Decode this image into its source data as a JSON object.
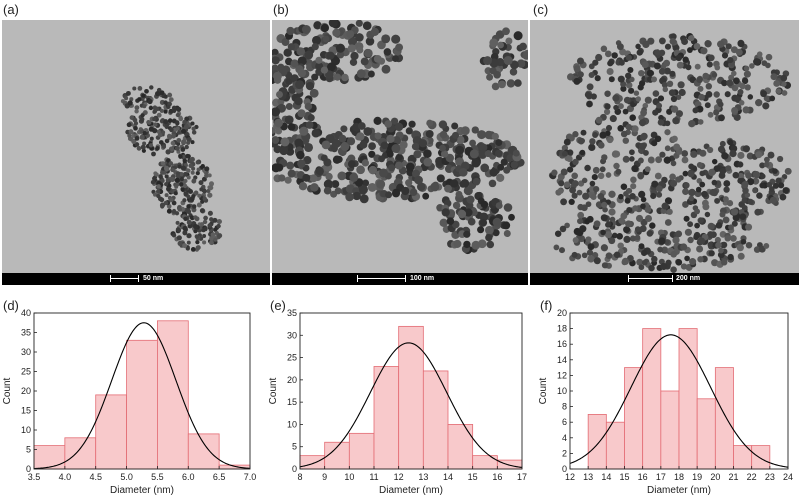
{
  "panels": {
    "a": {
      "label": "(a)",
      "scale": "50 nm"
    },
    "b": {
      "label": "(b)",
      "scale": "100 nm"
    },
    "c": {
      "label": "(c)",
      "scale": "200 nm"
    },
    "d": {
      "label": "(d)"
    },
    "e": {
      "label": "(e)"
    },
    "f": {
      "label": "(f)"
    }
  },
  "chart_data": [
    {
      "type": "bar",
      "panel": "(d)",
      "xlabel": "Diameter (nm)",
      "ylabel": "Count",
      "xlim": [
        3.5,
        7.0
      ],
      "ylim": [
        0,
        40
      ],
      "xticks": [
        "3.5",
        "4.0",
        "4.5",
        "5.0",
        "5.5",
        "6.0",
        "6.5",
        "7.0"
      ],
      "yticks": [
        "0",
        "5",
        "10",
        "15",
        "20",
        "25",
        "30",
        "35",
        "40"
      ],
      "bins": [
        [
          3.5,
          4.0
        ],
        [
          4.0,
          4.5
        ],
        [
          4.5,
          5.0
        ],
        [
          5.0,
          5.5
        ],
        [
          5.5,
          6.0
        ],
        [
          6.0,
          6.5
        ],
        [
          6.5,
          7.0
        ]
      ],
      "values": [
        6,
        8,
        19,
        33,
        38,
        9,
        1
      ],
      "fit": {
        "type": "gaussian",
        "mean": 5.28,
        "sigma": 0.52,
        "peak": 37.5
      }
    },
    {
      "type": "bar",
      "panel": "(e)",
      "xlabel": "Diameter (nm)",
      "ylabel": "Count",
      "xlim": [
        8,
        17
      ],
      "ylim": [
        0,
        35
      ],
      "xticks": [
        "8",
        "9",
        "10",
        "11",
        "12",
        "13",
        "14",
        "15",
        "16",
        "17"
      ],
      "yticks": [
        "0",
        "5",
        "10",
        "15",
        "20",
        "25",
        "30",
        "35"
      ],
      "bins": [
        [
          8,
          9
        ],
        [
          9,
          10
        ],
        [
          10,
          11
        ],
        [
          11,
          12
        ],
        [
          12,
          13
        ],
        [
          13,
          14
        ],
        [
          14,
          15
        ],
        [
          15,
          16
        ],
        [
          16,
          17
        ]
      ],
      "values": [
        3,
        6,
        8,
        23,
        32,
        22,
        10,
        3,
        2
      ],
      "fit": {
        "type": "gaussian",
        "mean": 12.4,
        "sigma": 1.55,
        "peak": 28.3
      }
    },
    {
      "type": "bar",
      "panel": "(f)",
      "xlabel": "Diameter (nm)",
      "ylabel": "Count",
      "xlim": [
        12,
        24
      ],
      "ylim": [
        0,
        20
      ],
      "xticks": [
        "12",
        "13",
        "14",
        "15",
        "16",
        "17",
        "18",
        "19",
        "20",
        "21",
        "22",
        "23",
        "24"
      ],
      "yticks": [
        "0",
        "2",
        "4",
        "6",
        "8",
        "10",
        "12",
        "14",
        "16",
        "18",
        "20"
      ],
      "bins": [
        [
          13,
          14
        ],
        [
          14,
          15
        ],
        [
          15,
          16
        ],
        [
          16,
          17
        ],
        [
          17,
          18
        ],
        [
          18,
          19
        ],
        [
          19,
          20
        ],
        [
          20,
          21
        ],
        [
          21,
          22
        ],
        [
          22,
          23
        ]
      ],
      "values": [
        7,
        6,
        13,
        18,
        10,
        18,
        9,
        13,
        3,
        3
      ],
      "fit": {
        "type": "gaussian",
        "mean": 17.55,
        "sigma": 2.2,
        "peak": 17.2
      }
    }
  ]
}
